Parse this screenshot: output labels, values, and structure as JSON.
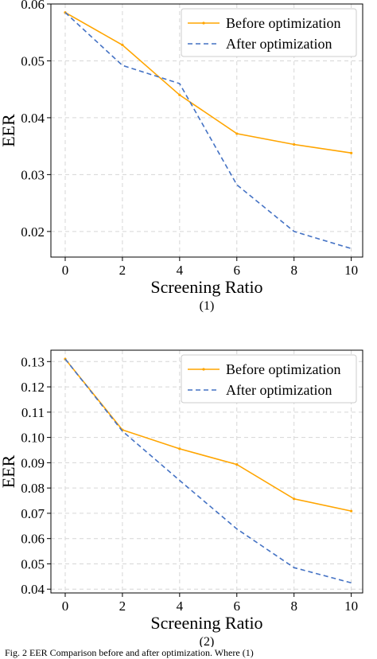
{
  "caption": "Fig. 2 EER Comparison before and after optimization. Where (1)",
  "chart_data": [
    {
      "type": "line",
      "sublabel": "(1)",
      "xlabel": "Screening Ratio",
      "ylabel": "EER",
      "x": [
        0,
        2,
        4,
        6,
        8,
        10
      ],
      "xlim": [
        -0.5,
        10.4
      ],
      "ylim": [
        0.0155,
        0.06
      ],
      "xticks": [
        0,
        2,
        4,
        6,
        8,
        10
      ],
      "yticks": [
        0.02,
        0.03,
        0.04,
        0.05,
        0.06
      ],
      "ytick_labels": [
        "0.02",
        "0.03",
        "0.04",
        "0.05",
        "0.06"
      ],
      "grid": true,
      "legend_position": "top-right",
      "series": [
        {
          "name": "Before optimization",
          "color": "#ffa500",
          "style": "solid",
          "values": [
            0.0585,
            0.0528,
            0.044,
            0.0372,
            0.0353,
            0.0338
          ]
        },
        {
          "name": "After optimization",
          "color": "#4472c4",
          "style": "dashed",
          "x": [
            0,
            2,
            4,
            6,
            8,
            10
          ],
          "values": [
            0.0585,
            0.0492,
            0.046,
            0.0282,
            0.02,
            0.017
          ]
        }
      ]
    },
    {
      "type": "line",
      "sublabel": "(2)",
      "xlabel": "Screening Ratio",
      "ylabel": "EER",
      "x": [
        0,
        2,
        4,
        6,
        8,
        10
      ],
      "xlim": [
        -0.5,
        10.4
      ],
      "ylim": [
        0.0385,
        0.1345
      ],
      "xticks": [
        0,
        2,
        4,
        6,
        8,
        10
      ],
      "yticks": [
        0.04,
        0.05,
        0.06,
        0.07,
        0.08,
        0.09,
        0.1,
        0.11,
        0.12,
        0.13
      ],
      "ytick_labels": [
        "0.04",
        "0.05",
        "0.06",
        "0.07",
        "0.08",
        "0.09",
        "0.10",
        "0.11",
        "0.12",
        "0.13"
      ],
      "grid": true,
      "legend_position": "top-right",
      "series": [
        {
          "name": "Before optimization",
          "color": "#ffa500",
          "style": "solid",
          "values": [
            0.131,
            0.103,
            0.0955,
            0.0893,
            0.0757,
            0.0709
          ]
        },
        {
          "name": "After optimization",
          "color": "#4472c4",
          "style": "dashed",
          "values": [
            0.131,
            0.1025,
            0.083,
            0.0638,
            0.0485,
            0.0425
          ]
        }
      ]
    }
  ]
}
